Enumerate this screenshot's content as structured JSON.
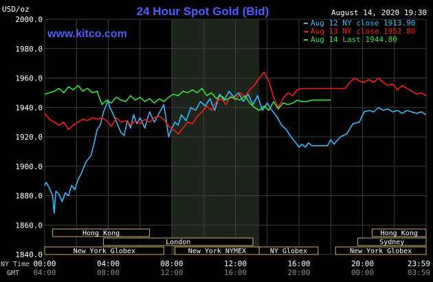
{
  "chart_data": {
    "type": "line",
    "title": "24 Hour Spot Gold (Bid)",
    "watermark": "www.kitco.com",
    "timestamp": "August 14, 2020 19:30",
    "ylabel": "USD/oz",
    "ylim": [
      1840,
      2000
    ],
    "yticks": [
      "2000.0",
      "1980.0",
      "1960.0",
      "1940.0",
      "1920.0",
      "1900.0",
      "1880.0",
      "1860.0",
      "1840.0"
    ],
    "yticks_values": [
      2000,
      1980,
      1960,
      1940,
      1920,
      1900,
      1880,
      1860,
      1840
    ],
    "xlim": [
      0,
      24
    ],
    "x_row_labels": {
      "ny": "NY Time",
      "gmt": "GMT"
    },
    "x_ticks": [
      {
        "hour": 0,
        "ny": "00:00",
        "gmt": "04:00"
      },
      {
        "hour": 4,
        "ny": "04:00",
        "gmt": "08:00"
      },
      {
        "hour": 8,
        "ny": "08:00",
        "gmt": "12:00"
      },
      {
        "hour": 12,
        "ny": "12:00",
        "gmt": "16:00"
      },
      {
        "hour": 16,
        "ny": "16:00",
        "gmt": "20:00"
      },
      {
        "hour": 20,
        "ny": "20:00",
        "gmt": "00:00"
      },
      {
        "hour": 24,
        "ny": "23:59",
        "gmt": "03:59"
      }
    ],
    "shaded_region": [
      8,
      13.5
    ],
    "grid": true,
    "legend_position": "top-right",
    "series": [
      {
        "name": "Aug 12 NY close 1913.90",
        "color": "#33bbff",
        "x": [
          0,
          0.1,
          0.3,
          0.5,
          0.6,
          0.7,
          0.9,
          1.1,
          1.3,
          1.5,
          1.7,
          1.9,
          2.1,
          2.3,
          2.6,
          2.9,
          3.1,
          3.3,
          3.5,
          3.7,
          4.0,
          4.1,
          4.2,
          4.4,
          4.6,
          4.8,
          5.0,
          5.2,
          5.4,
          5.6,
          5.8,
          6.0,
          6.3,
          6.6,
          6.9,
          7.2,
          7.5,
          7.8,
          8.0,
          8.2,
          8.4,
          8.6,
          8.9,
          9.2,
          9.5,
          9.8,
          10.1,
          10.4,
          10.7,
          11.0,
          11.3,
          11.6,
          11.9,
          12.2,
          12.5,
          12.8,
          13.1,
          13.4,
          13.7,
          14.0,
          14.3,
          14.6,
          14.9,
          15.2,
          15.5,
          15.8,
          16.0,
          16.2,
          16.4,
          16.6,
          16.8,
          17.2,
          17.5,
          17.8,
          18.0,
          18.2,
          18.6,
          19.0,
          19.4,
          19.8,
          20.1,
          20.4,
          20.7,
          21.0,
          21.3,
          21.6,
          21.9,
          22.2,
          22.5,
          22.8,
          23.1,
          23.4,
          23.7,
          24
        ],
        "values": [
          1887,
          1889,
          1885,
          1880,
          1868,
          1883,
          1881,
          1876,
          1882,
          1880,
          1887,
          1884,
          1891,
          1895,
          1903,
          1907,
          1915,
          1925,
          1928,
          1937,
          1945,
          1940,
          1938,
          1933,
          1928,
          1923,
          1921,
          1931,
          1926,
          1935,
          1929,
          1933,
          1926,
          1937,
          1930,
          1936,
          1942,
          1920,
          1926,
          1930,
          1928,
          1935,
          1931,
          1940,
          1938,
          1944,
          1941,
          1946,
          1938,
          1949,
          1945,
          1951,
          1947,
          1950,
          1944,
          1949,
          1942,
          1948,
          1938,
          1943,
          1938,
          1934,
          1928,
          1925,
          1920,
          1916,
          1913,
          1915,
          1913,
          1916,
          1914,
          1914,
          1914,
          1914,
          1918,
          1915,
          1920,
          1922,
          1929,
          1930,
          1937,
          1938,
          1937,
          1940,
          1938,
          1939,
          1937,
          1938,
          1936,
          1938,
          1937,
          1936,
          1937,
          1935
        ]
      },
      {
        "name": "Aug 13 NY close 1952.80",
        "color": "#ff1a1a",
        "x": [
          0,
          0.3,
          0.6,
          0.9,
          1.2,
          1.5,
          1.8,
          2.1,
          2.4,
          2.7,
          3.0,
          3.3,
          3.6,
          3.9,
          4.2,
          4.5,
          4.8,
          5.1,
          5.4,
          5.7,
          6.0,
          6.3,
          6.6,
          6.9,
          7.2,
          7.5,
          7.8,
          8.1,
          8.4,
          8.7,
          9.0,
          9.3,
          9.6,
          9.9,
          10.2,
          10.5,
          10.8,
          11.1,
          11.4,
          11.7,
          12.0,
          12.3,
          12.6,
          12.9,
          13.2,
          13.5,
          13.8,
          14.1,
          14.4,
          14.7,
          15.0,
          15.3,
          15.6,
          15.9,
          16.2,
          16.5,
          16.8,
          17.1,
          17.4,
          17.7,
          18.0,
          18.3,
          18.6,
          18.9,
          19.2,
          19.5,
          19.8,
          20.1,
          20.4,
          20.7,
          21.0,
          21.3,
          21.6,
          21.9,
          22.2,
          22.5,
          22.8,
          23.1,
          23.4,
          23.7,
          24
        ],
        "values": [
          1936,
          1932,
          1930,
          1928,
          1930,
          1925,
          1928,
          1930,
          1932,
          1931,
          1933,
          1932,
          1933,
          1931,
          1927,
          1933,
          1930,
          1931,
          1928,
          1931,
          1929,
          1932,
          1930,
          1933,
          1934,
          1932,
          1927,
          1925,
          1922,
          1926,
          1930,
          1929,
          1934,
          1937,
          1941,
          1938,
          1944,
          1946,
          1942,
          1948,
          1945,
          1950,
          1947,
          1952,
          1955,
          1960,
          1964,
          1958,
          1947,
          1940,
          1946,
          1950,
          1948,
          1952,
          1953,
          1953,
          1953,
          1953,
          1953,
          1953,
          1953,
          1953,
          1953,
          1953,
          1957,
          1960,
          1958,
          1957,
          1959,
          1957,
          1960,
          1957,
          1955,
          1956,
          1952,
          1955,
          1953,
          1951,
          1949,
          1950,
          1948
        ]
      },
      {
        "name": "Aug 14 Last 1944.80",
        "color": "#33e633",
        "x": [
          0,
          0.3,
          0.6,
          0.9,
          1.2,
          1.5,
          1.8,
          2.1,
          2.4,
          2.7,
          3.0,
          3.3,
          3.6,
          3.9,
          4.2,
          4.5,
          4.8,
          5.1,
          5.4,
          5.7,
          6.0,
          6.3,
          6.6,
          6.9,
          7.2,
          7.5,
          7.8,
          8.1,
          8.4,
          8.7,
          9.0,
          9.3,
          9.6,
          9.9,
          10.2,
          10.5,
          10.8,
          11.1,
          11.4,
          11.7,
          12.0,
          12.3,
          12.6,
          12.9,
          13.2,
          13.5,
          13.8,
          14.1,
          14.4,
          14.7,
          15.0,
          15.3,
          15.6,
          15.9,
          16.2,
          16.5,
          16.8,
          17.1,
          17.4,
          17.7,
          18.0
        ],
        "values": [
          1949,
          1950,
          1951,
          1953,
          1950,
          1954,
          1952,
          1955,
          1951,
          1953,
          1950,
          1951,
          1942,
          1945,
          1943,
          1947,
          1945,
          1944,
          1948,
          1945,
          1947,
          1944,
          1946,
          1943,
          1946,
          1944,
          1947,
          1949,
          1948,
          1951,
          1950,
          1952,
          1950,
          1953,
          1948,
          1950,
          1946,
          1948,
          1945,
          1947,
          1946,
          1945,
          1948,
          1943,
          1940,
          1938,
          1941,
          1938,
          1944,
          1939,
          1943,
          1942,
          1943,
          1945,
          1944,
          1944,
          1945,
          1945,
          1945,
          1945,
          1945
        ]
      }
    ],
    "sessions": {
      "row1": [
        {
          "label": "Hong Kong",
          "start": 0.5,
          "end": 6.6
        },
        {
          "label": "Hong Kong",
          "start": 20.6,
          "end": 24
        }
      ],
      "row2": [
        {
          "label": "London",
          "start": 3.7,
          "end": 13.1
        },
        {
          "label": "Sydney",
          "start": 19.7,
          "end": 24
        }
      ],
      "row3": [
        {
          "label": "New York Globex",
          "start": 0,
          "end": 7.5
        },
        {
          "label": "New York NYMEX",
          "start": 8.2,
          "end": 13.5
        },
        {
          "label": "NY Globex",
          "start": 13.5,
          "end": 17.2
        },
        {
          "label": "New York Globex",
          "start": 18.3,
          "end": 24
        }
      ]
    }
  }
}
